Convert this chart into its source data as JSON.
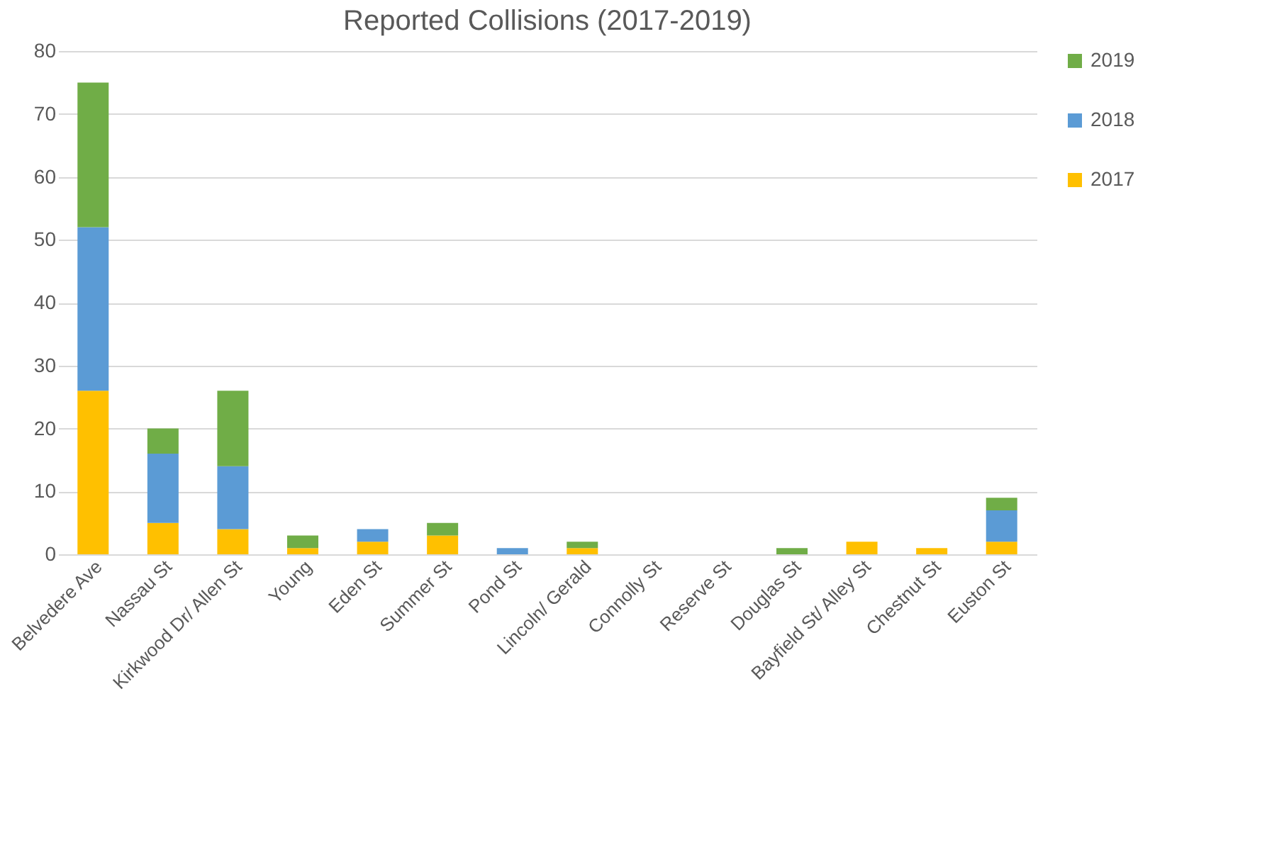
{
  "chart_data": {
    "type": "bar",
    "title": "Reported Collisions (2017-2019)",
    "stacked": true,
    "categories": [
      "Belvedere Ave",
      "Nassau St",
      "Kirkwood Dr/ Allen St",
      "Young",
      "Eden St",
      "Summer St",
      "Pond St",
      "Lincoln/ Gerald",
      "Connolly St",
      "Reserve St",
      "Douglas St",
      "Bayfield St/ Alley St",
      "Chestnut St",
      "Euston St"
    ],
    "series": [
      {
        "name": "2017",
        "color": "#ffc000",
        "values": [
          26,
          5,
          4,
          1,
          2,
          3,
          0,
          1,
          0,
          0,
          0,
          2,
          1,
          2
        ]
      },
      {
        "name": "2018",
        "color": "#5b9bd5",
        "values": [
          26,
          11,
          10,
          0,
          2,
          0,
          1,
          0,
          0,
          0,
          0,
          0,
          0,
          5
        ]
      },
      {
        "name": "2019",
        "color": "#70ad47",
        "values": [
          23,
          4,
          12,
          2,
          0,
          2,
          0,
          1,
          0,
          0,
          1,
          0,
          0,
          2
        ]
      }
    ],
    "ylim": [
      0,
      80
    ],
    "yticks": [
      0,
      10,
      20,
      30,
      40,
      50,
      60,
      70,
      80
    ],
    "grid": "y",
    "legend": "right"
  }
}
